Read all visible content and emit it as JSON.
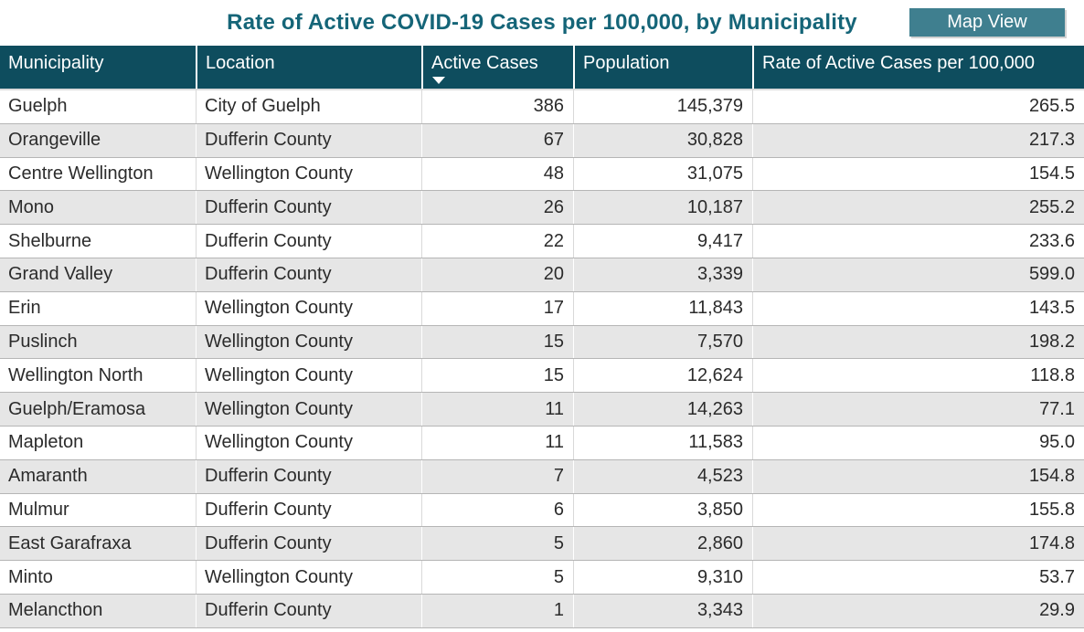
{
  "title": "Rate of Active COVID-19 Cases per 100,000, by Municipality",
  "map_view_button": "Map View",
  "colors": {
    "title_color": "#156578",
    "header_bg": "#0e4d5e",
    "button_bg": "#3f7f8f",
    "alt_row_bg": "#e6e6e6",
    "row_border": "#b5b5b5",
    "cell_text": "#2b2b2b",
    "header_text": "#ffffff"
  },
  "chart_data": {
    "type": "table",
    "title": "Rate of Active COVID-19 Cases per 100,000, by Municipality",
    "sort": {
      "column": "Active Cases",
      "direction": "descending"
    },
    "columns": [
      {
        "key": "municipality",
        "label": "Municipality",
        "align": "left",
        "sorted": false
      },
      {
        "key": "location",
        "label": "Location",
        "align": "left",
        "sorted": false
      },
      {
        "key": "active_cases",
        "label": "Active Cases",
        "align": "right",
        "sorted": true
      },
      {
        "key": "population",
        "label": "Population",
        "align": "right",
        "sorted": false
      },
      {
        "key": "rate",
        "label": "Rate of Active Cases per 100,000",
        "align": "right",
        "sorted": false
      }
    ],
    "rows": [
      {
        "municipality": "Guelph",
        "location": "City of Guelph",
        "active_cases": "386",
        "population": "145,379",
        "rate": "265.5"
      },
      {
        "municipality": "Orangeville",
        "location": "Dufferin County",
        "active_cases": "67",
        "population": "30,828",
        "rate": "217.3"
      },
      {
        "municipality": "Centre Wellington",
        "location": "Wellington County",
        "active_cases": "48",
        "population": "31,075",
        "rate": "154.5"
      },
      {
        "municipality": "Mono",
        "location": "Dufferin County",
        "active_cases": "26",
        "population": "10,187",
        "rate": "255.2"
      },
      {
        "municipality": "Shelburne",
        "location": "Dufferin County",
        "active_cases": "22",
        "population": "9,417",
        "rate": "233.6"
      },
      {
        "municipality": "Grand Valley",
        "location": "Dufferin County",
        "active_cases": "20",
        "population": "3,339",
        "rate": "599.0"
      },
      {
        "municipality": "Erin",
        "location": "Wellington County",
        "active_cases": "17",
        "population": "11,843",
        "rate": "143.5"
      },
      {
        "municipality": "Puslinch",
        "location": "Wellington County",
        "active_cases": "15",
        "population": "7,570",
        "rate": "198.2"
      },
      {
        "municipality": "Wellington North",
        "location": "Wellington County",
        "active_cases": "15",
        "population": "12,624",
        "rate": "118.8"
      },
      {
        "municipality": "Guelph/Eramosa",
        "location": "Wellington County",
        "active_cases": "11",
        "population": "14,263",
        "rate": "77.1"
      },
      {
        "municipality": "Mapleton",
        "location": "Wellington County",
        "active_cases": "11",
        "population": "11,583",
        "rate": "95.0"
      },
      {
        "municipality": "Amaranth",
        "location": "Dufferin County",
        "active_cases": "7",
        "population": "4,523",
        "rate": "154.8"
      },
      {
        "municipality": "Mulmur",
        "location": "Dufferin County",
        "active_cases": "6",
        "population": "3,850",
        "rate": "155.8"
      },
      {
        "municipality": "East Garafraxa",
        "location": "Dufferin County",
        "active_cases": "5",
        "population": "2,860",
        "rate": "174.8"
      },
      {
        "municipality": "Minto",
        "location": "Wellington County",
        "active_cases": "5",
        "population": "9,310",
        "rate": "53.7"
      },
      {
        "municipality": "Melancthon",
        "location": "Dufferin County",
        "active_cases": "1",
        "population": "3,343",
        "rate": "29.9"
      }
    ]
  }
}
